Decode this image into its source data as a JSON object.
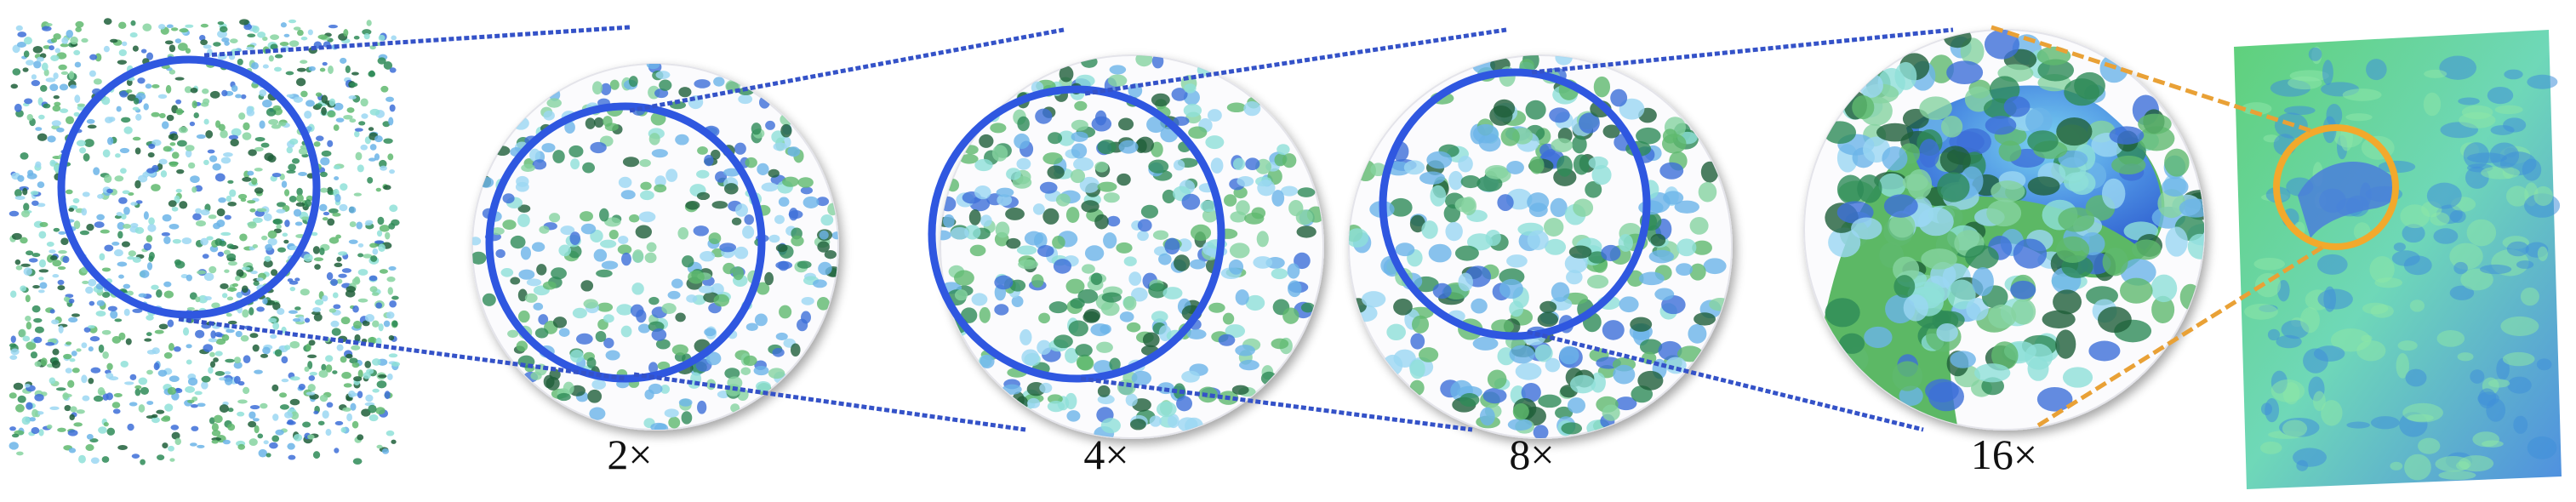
{
  "figure": {
    "zoom_labels": [
      "2×",
      "4×",
      "8×",
      "16×"
    ]
  },
  "colors": {
    "zoom_ring": "#2f57e0",
    "connector": "#3452c8",
    "highlight_ring": "#f2a92c",
    "highlight_connector": "#e9a136",
    "point_palette": [
      "#2e8b57",
      "#5fb96e",
      "#86d3a0",
      "#8fe0d8",
      "#6bb4e8",
      "#3d6fd8",
      "#9bd7f2",
      "#1f5f3a"
    ]
  }
}
